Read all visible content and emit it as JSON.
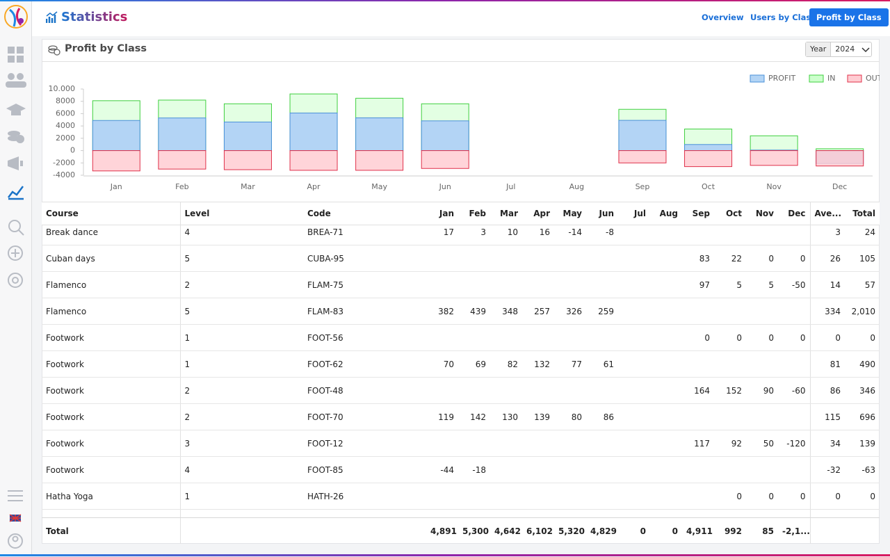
{
  "app": {
    "title": "Statistics",
    "tabs": [
      "Overview",
      "Users by Class",
      "Profit by Class"
    ],
    "active_tab": 2
  },
  "panel": {
    "title": "Profit by Class",
    "year_label": "Year",
    "year": "2024"
  },
  "chart_data": {
    "type": "bar",
    "categories": [
      "Jan",
      "Feb",
      "Mar",
      "Apr",
      "May",
      "Jun",
      "Jul",
      "Aug",
      "Sep",
      "Oct",
      "Nov",
      "Dec"
    ],
    "series": [
      {
        "name": "PROFIT",
        "color": "#4a90d9",
        "fill": "#b3d4f5",
        "values": [
          4891,
          5300,
          4642,
          6102,
          5320,
          4829,
          0,
          0,
          4911,
          992,
          85,
          -2100
        ]
      },
      {
        "name": "IN",
        "color": "#3fcf3f",
        "fill": "#ccffcc",
        "values": [
          8100,
          8200,
          7600,
          9200,
          8500,
          7600,
          0,
          0,
          6700,
          3500,
          2400,
          300
        ]
      },
      {
        "name": "OUT",
        "color": "#e0304a",
        "fill": "#ffccd2",
        "values": [
          -3300,
          -3000,
          -3100,
          -3200,
          -3200,
          -2900,
          0,
          0,
          -2000,
          -2600,
          -2400,
          -2500
        ]
      }
    ],
    "ylim": [
      -4000,
      10000
    ],
    "yticks": [
      -4000,
      -2000,
      0,
      2000,
      4000,
      6000,
      8000,
      {
        "value": 10000,
        "label": "10.000"
      }
    ],
    "grid": false,
    "legend": "top-right"
  },
  "table": {
    "columns": [
      "Course",
      "Level",
      "Code",
      "Jan",
      "Feb",
      "Mar",
      "Apr",
      "May",
      "Jun",
      "Jul",
      "Aug",
      "Sep",
      "Oct",
      "Nov",
      "Dec",
      "Ave...",
      "Total"
    ],
    "rows": [
      [
        "Break dance",
        "4",
        "BREA-71",
        "17",
        "3",
        "10",
        "16",
        "-14",
        "-8",
        null,
        null,
        null,
        null,
        null,
        null,
        "3",
        "24"
      ],
      [
        "Cuban days",
        "5",
        "CUBA-95",
        null,
        null,
        null,
        null,
        null,
        null,
        null,
        null,
        "83",
        "22",
        "0",
        "0",
        "26",
        "105"
      ],
      [
        "Flamenco",
        "2",
        "FLAM-75",
        null,
        null,
        null,
        null,
        null,
        null,
        null,
        null,
        "97",
        "5",
        "5",
        "-50",
        "14",
        "57"
      ],
      [
        "Flamenco",
        "5",
        "FLAM-83",
        "382",
        "439",
        "348",
        "257",
        "326",
        "259",
        null,
        null,
        null,
        null,
        null,
        null,
        "334",
        "2,010"
      ],
      [
        "Footwork",
        "1",
        "FOOT-56",
        null,
        null,
        null,
        null,
        null,
        null,
        null,
        null,
        "0",
        "0",
        "0",
        "0",
        "0",
        "0"
      ],
      [
        "Footwork",
        "1",
        "FOOT-62",
        "70",
        "69",
        "82",
        "132",
        "77",
        "61",
        null,
        null,
        null,
        null,
        null,
        null,
        "81",
        "490"
      ],
      [
        "Footwork",
        "2",
        "FOOT-48",
        null,
        null,
        null,
        null,
        null,
        null,
        null,
        null,
        "164",
        "152",
        "90",
        "-60",
        "86",
        "346"
      ],
      [
        "Footwork",
        "2",
        "FOOT-70",
        "119",
        "142",
        "130",
        "139",
        "80",
        "86",
        null,
        null,
        null,
        null,
        null,
        null,
        "115",
        "696"
      ],
      [
        "Footwork",
        "3",
        "FOOT-12",
        null,
        null,
        null,
        null,
        null,
        null,
        null,
        null,
        "117",
        "92",
        "50",
        "-120",
        "34",
        "139"
      ],
      [
        "Footwork",
        "4",
        "FOOT-85",
        "-44",
        "-18",
        null,
        null,
        null,
        null,
        null,
        null,
        null,
        null,
        null,
        null,
        "-32",
        "-63"
      ],
      [
        "Hatha Yoga",
        "1",
        "HATH-26",
        null,
        null,
        null,
        null,
        null,
        null,
        null,
        null,
        null,
        "0",
        "0",
        "0",
        "0",
        "0"
      ]
    ],
    "total": [
      "Total",
      null,
      null,
      "4,891",
      "5,300",
      "4,642",
      "6,102",
      "5,320",
      "4,829",
      "0",
      "0",
      "4,911",
      "992",
      "85",
      "-2,1...",
      null,
      null
    ]
  }
}
